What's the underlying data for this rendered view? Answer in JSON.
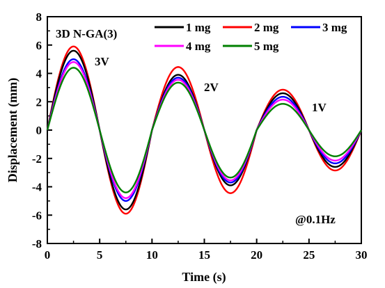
{
  "chart_data": {
    "type": "line",
    "title": "",
    "xlabel": "Time (s)",
    "ylabel": "Displacement (mm)",
    "xlim": [
      0,
      30
    ],
    "ylim": [
      -8,
      8
    ],
    "x_ticks": [
      0,
      5,
      10,
      15,
      20,
      25,
      30
    ],
    "y_ticks": [
      -8,
      -6,
      -4,
      -2,
      0,
      2,
      4,
      6,
      8
    ],
    "grid": false,
    "legend_position": "top-right",
    "period_s": 10,
    "segments": [
      {
        "label": "3V",
        "x_range": [
          0,
          10
        ]
      },
      {
        "label": "2V",
        "x_range": [
          10,
          20
        ]
      },
      {
        "label": "1V",
        "x_range": [
          20,
          30
        ]
      }
    ],
    "series": [
      {
        "name": "1 mg",
        "color": "#000000",
        "amplitudes": [
          5.6,
          3.9,
          2.6
        ]
      },
      {
        "name": "2 mg",
        "color": "#ff0000",
        "amplitudes": [
          5.9,
          4.45,
          2.85
        ]
      },
      {
        "name": "3 mg",
        "color": "#0000ff",
        "amplitudes": [
          5.0,
          3.7,
          2.35
        ]
      },
      {
        "name": "4 mg",
        "color": "#ff00ff",
        "amplitudes": [
          4.8,
          3.55,
          2.15
        ]
      },
      {
        "name": "5 mg",
        "color": "#008000",
        "amplitudes": [
          4.4,
          3.35,
          1.85
        ]
      }
    ],
    "annotations": [
      "3D N-GA(3)",
      "3V",
      "2V",
      "1V",
      "@0.1Hz"
    ]
  }
}
